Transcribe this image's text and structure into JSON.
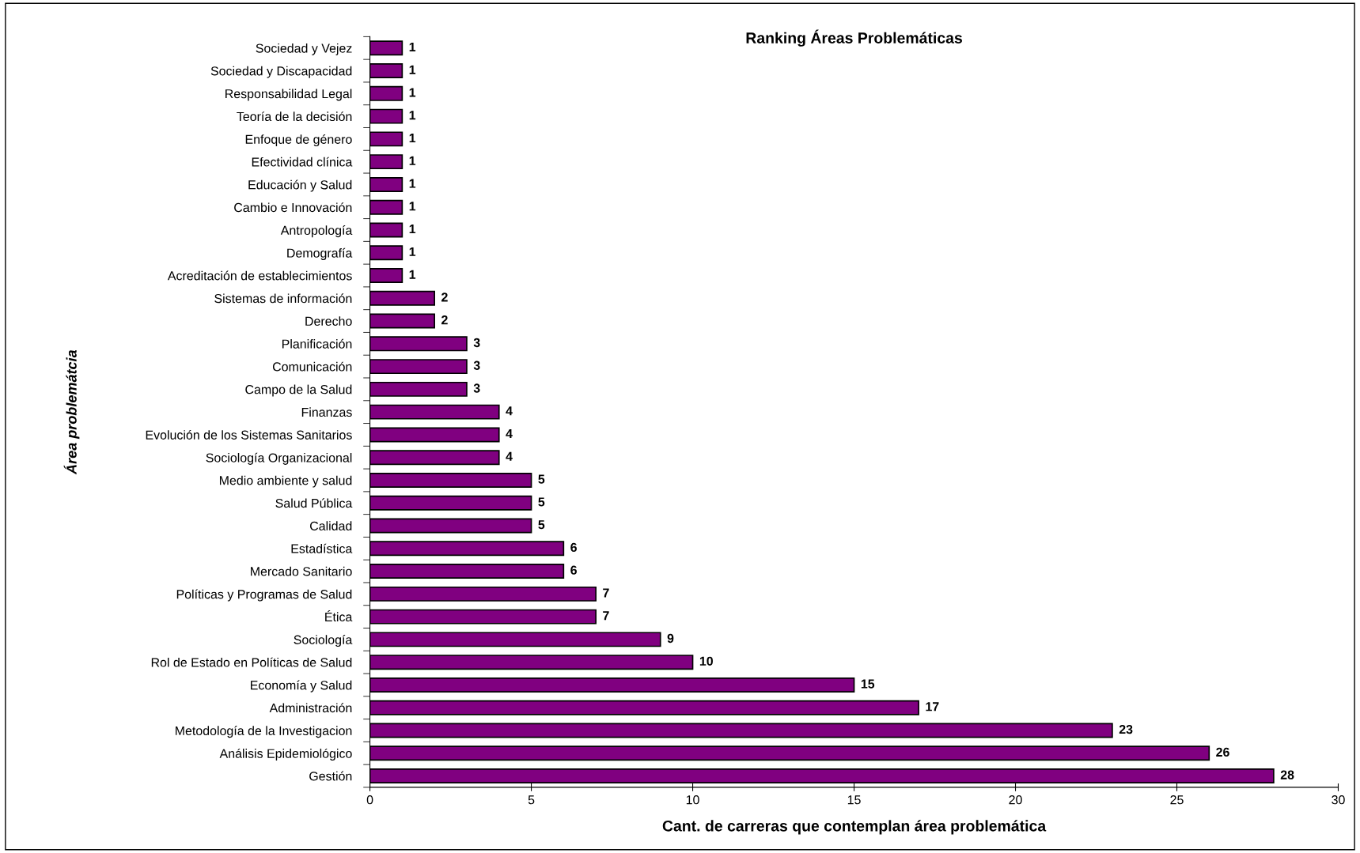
{
  "chart_data": {
    "type": "bar",
    "orientation": "horizontal",
    "title": "Ranking Áreas Problemáticas",
    "xlabel": "Cant. de carreras que contemplan área problemática",
    "ylabel": "Área problemátcia",
    "categories": [
      "Sociedad y Vejez",
      "Sociedad y Discapacidad",
      "Responsabilidad Legal",
      "Teoría de la decisión",
      "Enfoque de género",
      "Efectividad clínica",
      "Educación y Salud",
      "Cambio e Innovación",
      "Antropología",
      "Demografía",
      "Acreditación de establecimientos",
      "Sistemas de información",
      "Derecho",
      "Planificación",
      "Comunicación",
      "Campo de la Salud",
      "Finanzas",
      "Evolución de los Sistemas Sanitarios",
      "Sociología Organizacional",
      "Medio ambiente y salud",
      "Salud Pública",
      "Calidad",
      "Estadística",
      "Mercado Sanitario",
      "Políticas y Programas de Salud",
      "Ética",
      "Sociología",
      "Rol de Estado en Políticas de Salud",
      "Economía y Salud",
      "Administración",
      "Metodología de la Investigacion",
      "Análisis Epidemiológico",
      "Gestión"
    ],
    "values": [
      1,
      1,
      1,
      1,
      1,
      1,
      1,
      1,
      1,
      1,
      1,
      2,
      2,
      3,
      3,
      3,
      4,
      4,
      4,
      5,
      5,
      5,
      6,
      6,
      7,
      7,
      9,
      10,
      15,
      17,
      23,
      26,
      28
    ],
    "color": "#800080",
    "data_labels": true,
    "xlim": [
      0,
      30
    ],
    "xticks": [
      0,
      5,
      10,
      15,
      20,
      25,
      30
    ],
    "grid": false,
    "legend": false
  }
}
